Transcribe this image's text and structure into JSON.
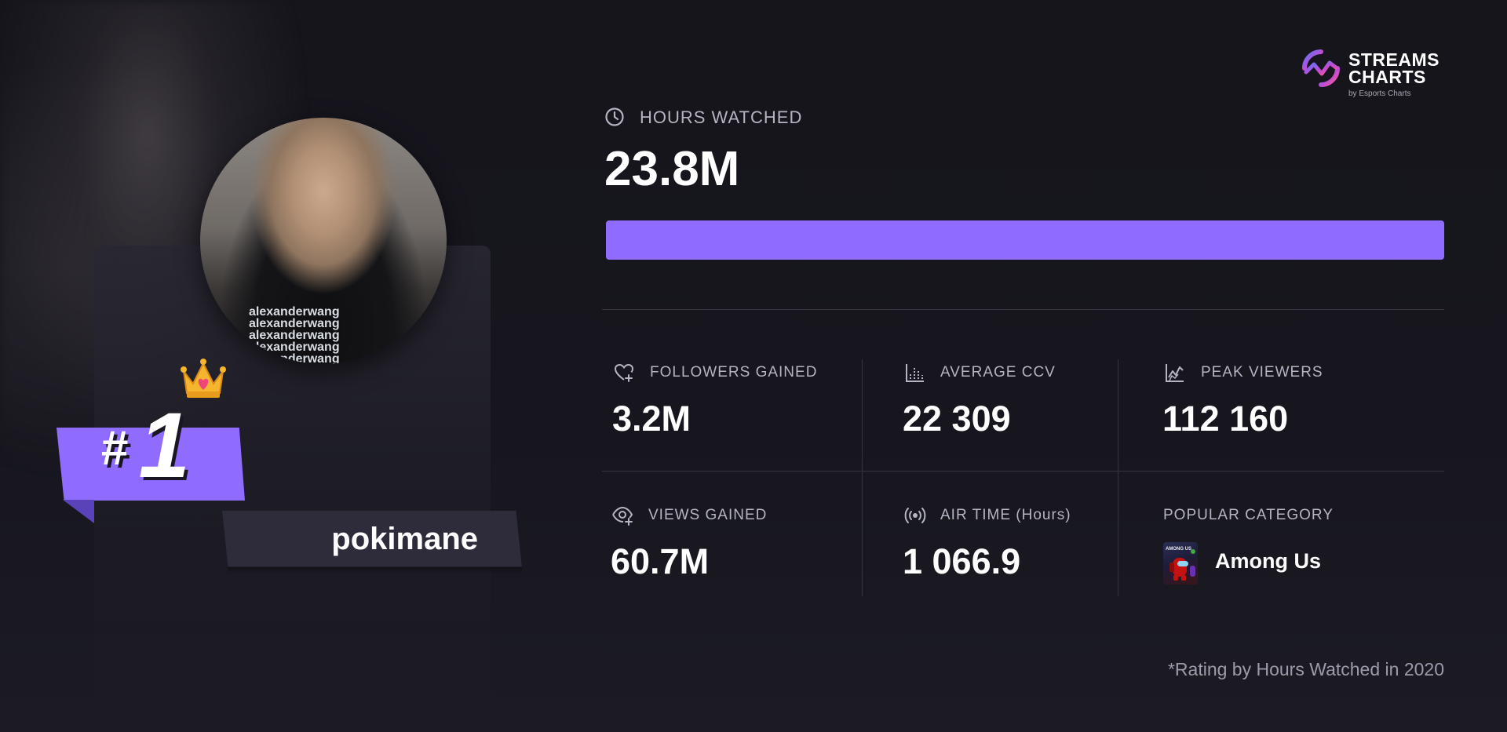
{
  "logo": {
    "line1": "STREAMS",
    "line2": "CHARTS",
    "sub": "by Esports Charts",
    "gradient": [
      "#4f7cff",
      "#c04bd6",
      "#ff5b8a"
    ]
  },
  "streamer": {
    "rank_hash": "#",
    "rank_number": "1",
    "name": "pokimane",
    "shirt_text": [
      "alexanderwang",
      "alexanderwang",
      "alexanderwang",
      "alexanderwang",
      "alexanderwang"
    ]
  },
  "hours_watched": {
    "icon": "clock-icon",
    "label": "HOURS WATCHED",
    "value": "23.8M",
    "bar_fill_fraction": 1.0
  },
  "stats": [
    {
      "icon": "heart-plus-icon",
      "label": "FOLLOWERS GAINED",
      "value": "3.2M"
    },
    {
      "icon": "bar-chart-icon",
      "label": "AVERAGE CCV",
      "value": "22 309"
    },
    {
      "icon": "peak-chart-icon",
      "label": "PEAK VIEWERS",
      "value": "112 160"
    },
    {
      "icon": "eye-plus-icon",
      "label": "VIEWS GAINED",
      "value": "60.7M"
    },
    {
      "icon": "broadcast-icon",
      "label": "AIR TIME (Hours)",
      "value": "1 066.9"
    }
  ],
  "popular_category": {
    "label": "POPULAR CATEGORY",
    "name": "Among Us",
    "thumb_text": "AMONG US"
  },
  "footnote": "*Rating by Hours Watched in 2020",
  "colors": {
    "accent": "#8f6bff",
    "background": "#16151c",
    "muted_text": "#b5b4c2",
    "divider": "#34333f"
  }
}
